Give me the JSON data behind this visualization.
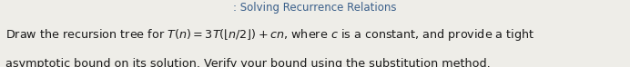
{
  "title": ": Solving Recurrence Relations",
  "title_color": "#3a5f8a",
  "background_color": "#eeede8",
  "line1": "Draw the recursion tree for $T(n) = 3T(\\lfloor n/2 \\rfloor) + cn$, where $c$ is a constant, and provide a tight",
  "line2": "asymptotic bound on its solution. Verify your bound using the substitution method.",
  "text_color": "#1a1a1a",
  "title_fontsize": 8.5,
  "body_fontsize": 9.2,
  "fig_width": 6.92,
  "fig_height": 0.74,
  "dpi": 100
}
